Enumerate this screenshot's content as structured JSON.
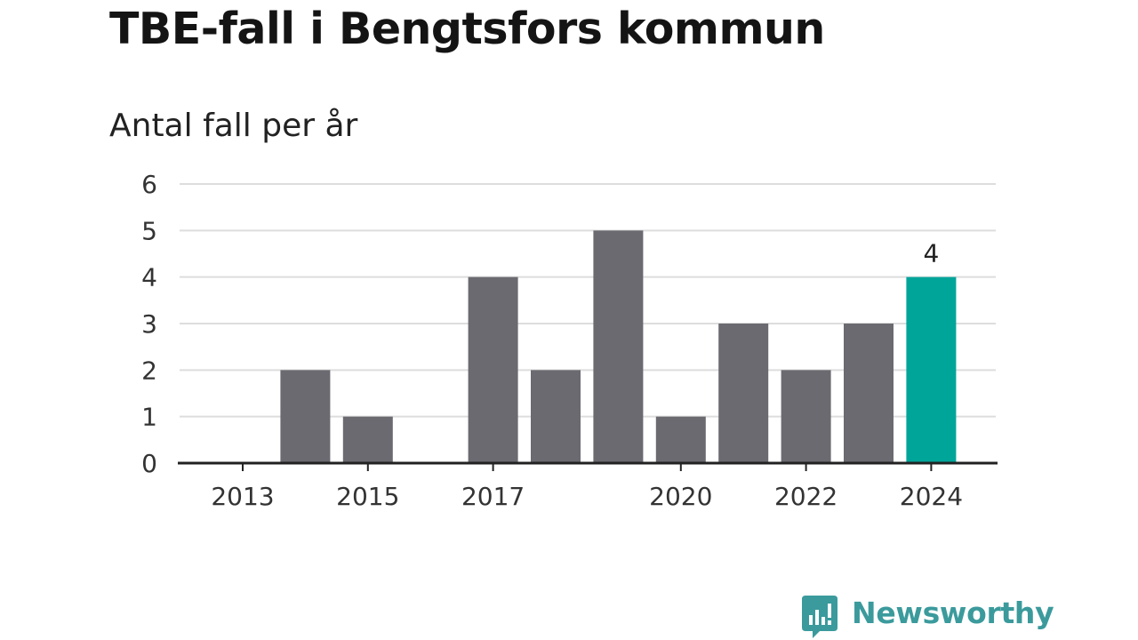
{
  "title": "TBE-fall i Bengtsfors kommun",
  "subtitle": "Antal fall per år",
  "brand": {
    "name": "Newsworthy",
    "logo_icon": "newsworthy-logo-icon",
    "color": "#3b9a9c"
  },
  "colors": {
    "bar": "#6b6a70",
    "highlight": "#00a59a",
    "grid": "#dddddd",
    "axis": "#222222"
  },
  "chart_data": {
    "type": "bar",
    "title": "TBE-fall i Bengtsfors kommun",
    "subtitle": "Antal fall per år",
    "categories": [
      "2013",
      "2014",
      "2015",
      "2016",
      "2017",
      "2018",
      "2019",
      "2020",
      "2021",
      "2022",
      "2023",
      "2024"
    ],
    "values": [
      0,
      2,
      1,
      0,
      4,
      2,
      5,
      1,
      3,
      2,
      3,
      4
    ],
    "highlight_index": 11,
    "x_tick_labels": [
      "2013",
      "",
      "2015",
      "",
      "2017",
      "",
      "",
      "2020",
      "",
      "2022",
      "",
      "2024"
    ],
    "y_ticks": [
      0,
      1,
      2,
      3,
      4,
      5,
      6
    ],
    "ylim": [
      0,
      6
    ],
    "data_labels": [
      {
        "category": "2024",
        "text": "4"
      }
    ],
    "grid": true,
    "legend": "none",
    "xlabel": "",
    "ylabel": ""
  }
}
